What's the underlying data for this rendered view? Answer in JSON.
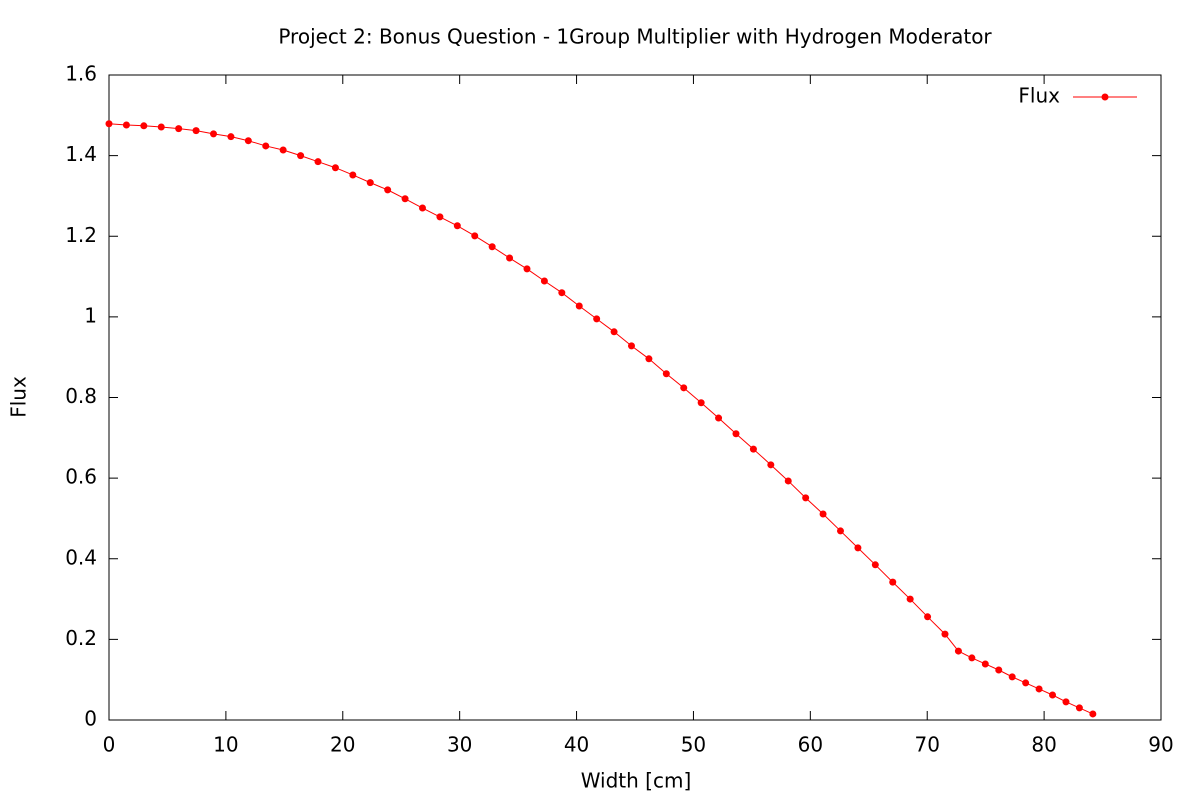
{
  "chart_data": {
    "type": "line",
    "title": "Project 2: Bonus Question - 1Group Multiplier with Hydrogen Moderator",
    "x_label": "Width [cm]",
    "y_label": "Flux",
    "xlim": [
      0,
      90
    ],
    "ylim": [
      0,
      1.6
    ],
    "xticks": [
      0,
      10,
      20,
      30,
      40,
      50,
      60,
      70,
      80,
      90
    ],
    "yticks": [
      0,
      0.2,
      0.4,
      0.6,
      0.8,
      1,
      1.2,
      1.4,
      1.6
    ],
    "legend": "top-right",
    "x": [
      0,
      1.49,
      2.98,
      4.47,
      5.96,
      7.45,
      8.94,
      10.43,
      11.92,
      13.41,
      14.9,
      16.39,
      17.88,
      19.37,
      20.86,
      22.35,
      23.84,
      25.33,
      26.82,
      28.31,
      29.8,
      31.29,
      32.78,
      34.27,
      35.76,
      37.25,
      38.74,
      40.23,
      41.72,
      43.21,
      44.7,
      46.19,
      47.68,
      49.17,
      50.66,
      52.15,
      53.64,
      55.13,
      56.62,
      58.11,
      59.6,
      61.09,
      62.58,
      64.07,
      65.56,
      67.05,
      68.54,
      70.03,
      71.52,
      72.67,
      73.82,
      74.97,
      76.12,
      77.27,
      78.42,
      79.57,
      80.72,
      81.87,
      83.02,
      84.17
    ],
    "series": [
      {
        "name": "Flux",
        "color": "#ff0000",
        "values": [
          1.479,
          1.476,
          1.474,
          1.471,
          1.467,
          1.462,
          1.454,
          1.447,
          1.437,
          1.424,
          1.414,
          1.4,
          1.385,
          1.37,
          1.352,
          1.333,
          1.315,
          1.293,
          1.27,
          1.248,
          1.226,
          1.201,
          1.174,
          1.146,
          1.119,
          1.089,
          1.06,
          1.027,
          0.995,
          0.963,
          0.928,
          0.896,
          0.859,
          0.824,
          0.787,
          0.749,
          0.71,
          0.672,
          0.633,
          0.593,
          0.551,
          0.511,
          0.469,
          0.427,
          0.385,
          0.342,
          0.3,
          0.256,
          0.213,
          0.171,
          0.154,
          0.139,
          0.124,
          0.107,
          0.092,
          0.077,
          0.062,
          0.045,
          0.03,
          0.015
        ]
      }
    ]
  }
}
